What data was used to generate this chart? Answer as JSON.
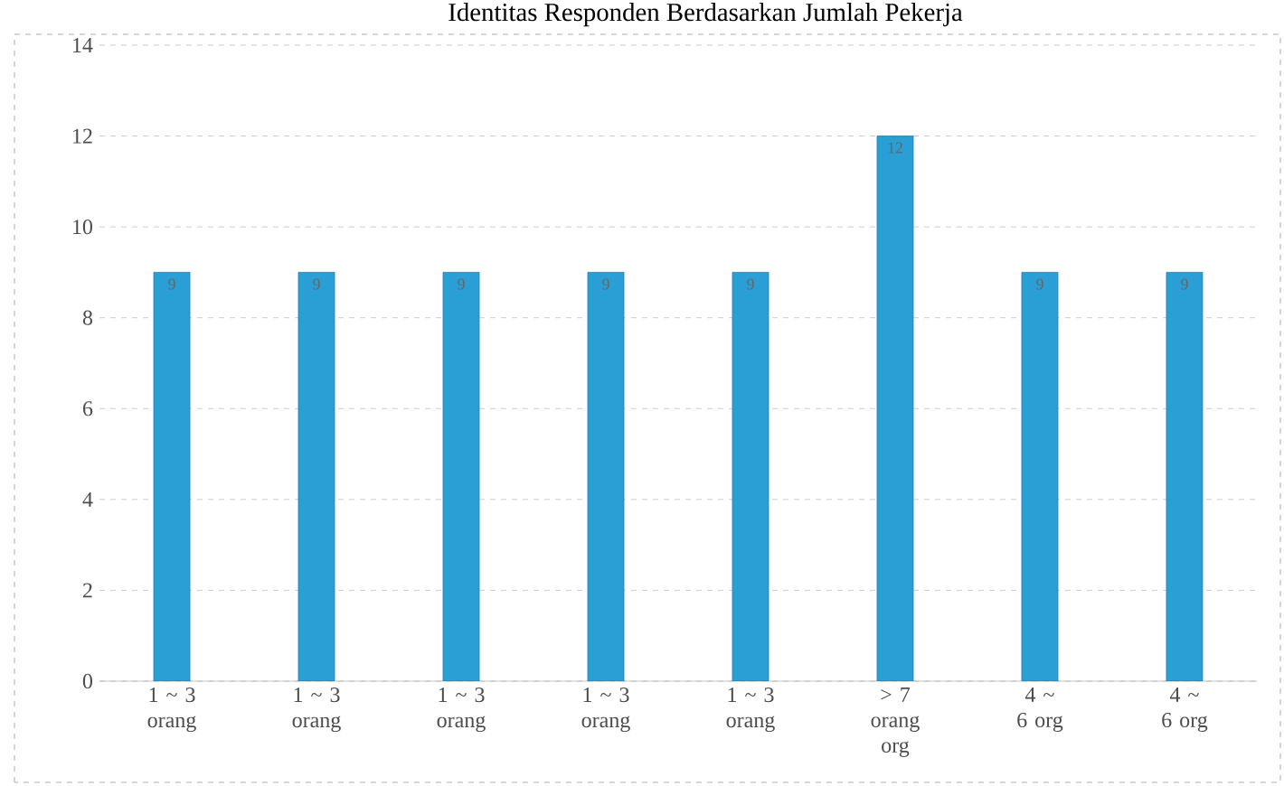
{
  "chart_data": {
    "type": "bar",
    "title": "Identitas Responden Berdasarkan Jumlah Pekerja",
    "categories": [
      "1 ~ 3 orang",
      "1 ~ 3 orang",
      "1 ~ 3 orang",
      "1 ~ 3 orang",
      "1 ~ 3 orang",
      "> 7 orang org",
      "4 ~ 6 org",
      "4 ~ 6 org"
    ],
    "values": [
      9,
      9,
      9,
      9,
      9,
      12,
      9,
      9
    ],
    "color": "#2a9fd6",
    "ylim": [
      0,
      14
    ],
    "yticks": [
      0,
      2,
      4,
      6,
      8,
      10,
      12,
      14
    ],
    "grid": "y",
    "data_labels": true
  }
}
